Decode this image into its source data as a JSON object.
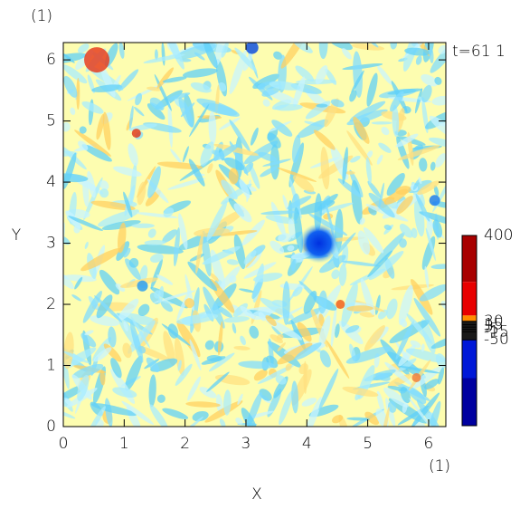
{
  "chart_data": {
    "type": "heatmap",
    "corner_label": "(1)",
    "time_label": "t=61 1",
    "x_label": "X",
    "y_label": "Y",
    "x_unit_label": "(1)",
    "xlim": [
      0,
      6.283
    ],
    "ylim": [
      0,
      6.283
    ],
    "xticks": [
      0,
      1,
      2,
      3,
      4,
      5,
      6
    ],
    "yticks": [
      0,
      1,
      2,
      3,
      4,
      5,
      6
    ],
    "colorbar": {
      "clim": [
        -420,
        400
      ],
      "ticks": [
        400,
        30,
        15,
        5,
        -5,
        -15,
        -50
      ],
      "bands": [
        {
          "from": 200,
          "to": 400,
          "color": "#a80000"
        },
        {
          "from": 55,
          "to": 200,
          "color": "#e80000"
        },
        {
          "from": 30,
          "to": 55,
          "color": "#ff8c00"
        },
        {
          "from": -50,
          "to": 30,
          "color": "#1a1a1a"
        },
        {
          "from": -215,
          "to": -50,
          "color": "#0018d8"
        },
        {
          "from": -420,
          "to": -215,
          "color": "#0000a0"
        }
      ]
    }
  }
}
